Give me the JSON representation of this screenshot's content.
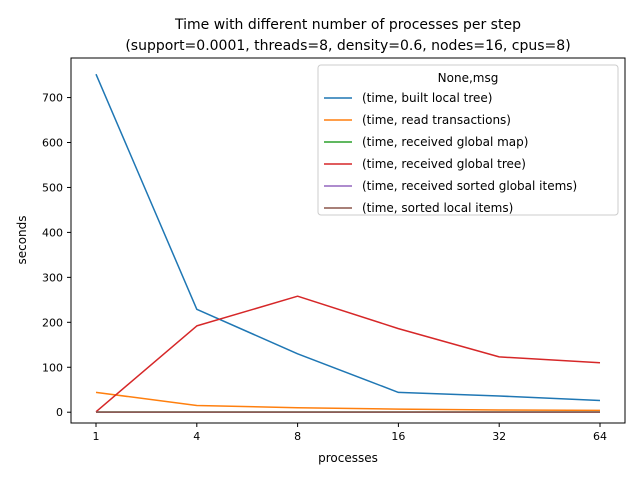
{
  "chart_data": {
    "type": "line",
    "title_line1": "Time with different number of processes per step",
    "title_line2": "(support=0.0001, threads=8, density=0.6, nodes=16, cpus=8)",
    "xlabel": "processes",
    "ylabel": "seconds",
    "categories": [
      "1",
      "4",
      "8",
      "16",
      "32",
      "64"
    ],
    "yticks": [
      0,
      100,
      200,
      300,
      400,
      500,
      600,
      700
    ],
    "ylim": [
      -24,
      788
    ],
    "grid": false,
    "legend_title": "None,msg",
    "legend_position": "top-right",
    "series": [
      {
        "name": "(time, built local tree)",
        "color": "#1f77b4",
        "values": [
          752,
          229,
          130,
          44,
          36,
          26
        ]
      },
      {
        "name": "(time, read transactions)",
        "color": "#ff7f0e",
        "values": [
          44,
          15,
          10,
          7,
          5,
          4
        ]
      },
      {
        "name": "(time, received global map)",
        "color": "#2ca02c",
        "values": [
          0.5,
          0.5,
          0.5,
          0.5,
          0.5,
          0.5
        ]
      },
      {
        "name": "(time, received global tree)",
        "color": "#d62728",
        "values": [
          1,
          192,
          258,
          186,
          123,
          110
        ]
      },
      {
        "name": "(time, received sorted global items)",
        "color": "#9467bd",
        "values": [
          0.3,
          0.3,
          0.3,
          0.3,
          0.3,
          0.3
        ]
      },
      {
        "name": "(time, sorted local items)",
        "color": "#8c564b",
        "values": [
          0.2,
          0.2,
          0.2,
          0.2,
          0.2,
          0.2
        ]
      }
    ]
  }
}
